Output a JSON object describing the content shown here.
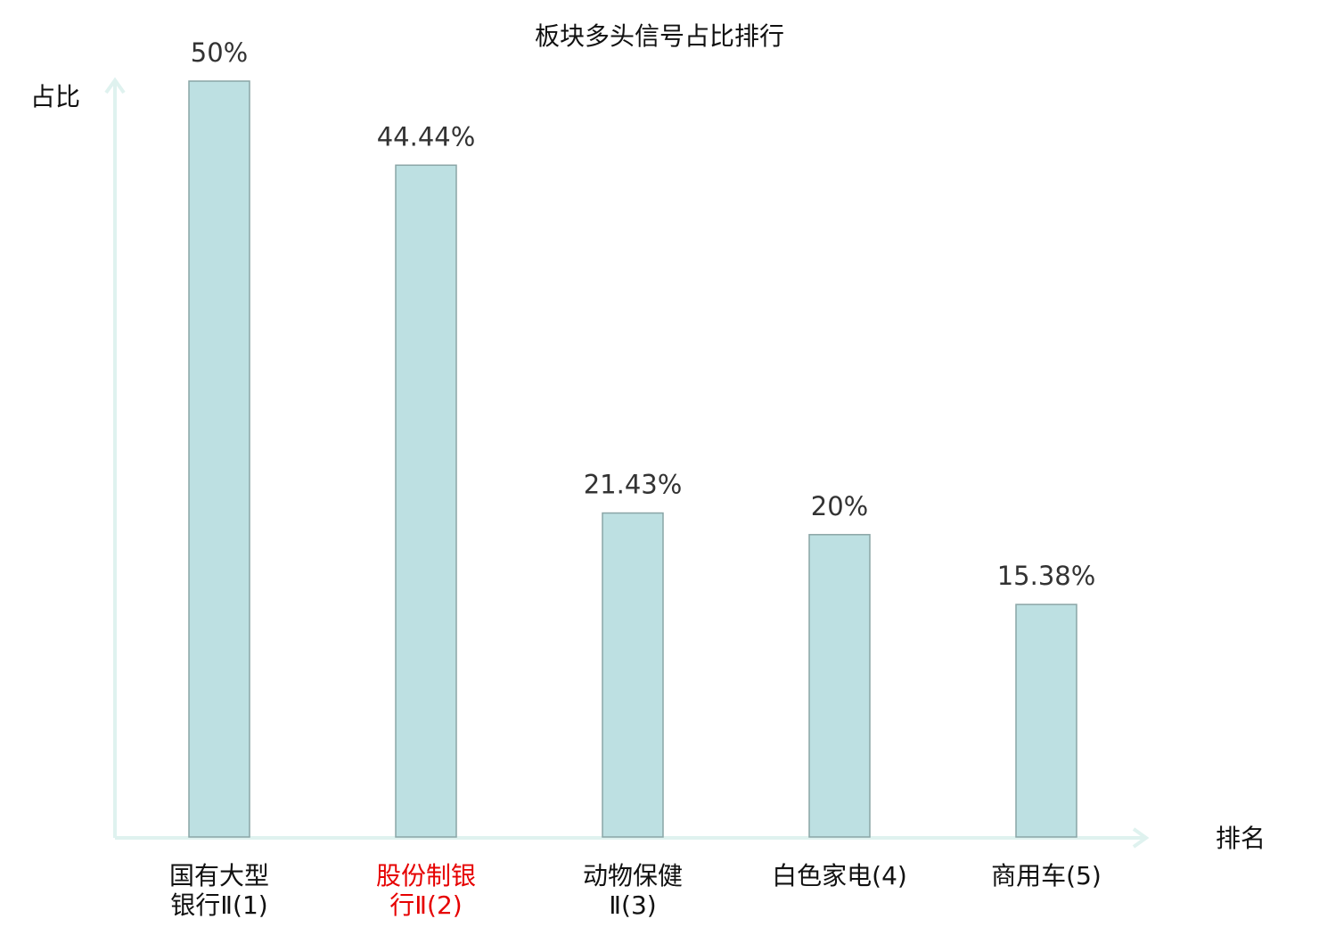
{
  "chart_data": {
    "type": "bar",
    "title": "板块多头信号占比排行",
    "y_label": "占比",
    "x_label": "排名",
    "categories": [
      "国有大型银行Ⅱ(1)",
      "股份制银行Ⅱ(2)",
      "动物保健Ⅱ(3)",
      "白色家电(4)",
      "商用车(5)"
    ],
    "values": [
      50,
      44.44,
      21.43,
      20,
      15.38
    ],
    "value_labels": [
      "50%",
      "44.44%",
      "21.43%",
      "20%",
      "15.38%"
    ],
    "color": "#bde0e2",
    "highlight": 1,
    "highlight_color": "#e60000",
    "ylim": [
      0,
      50
    ]
  }
}
